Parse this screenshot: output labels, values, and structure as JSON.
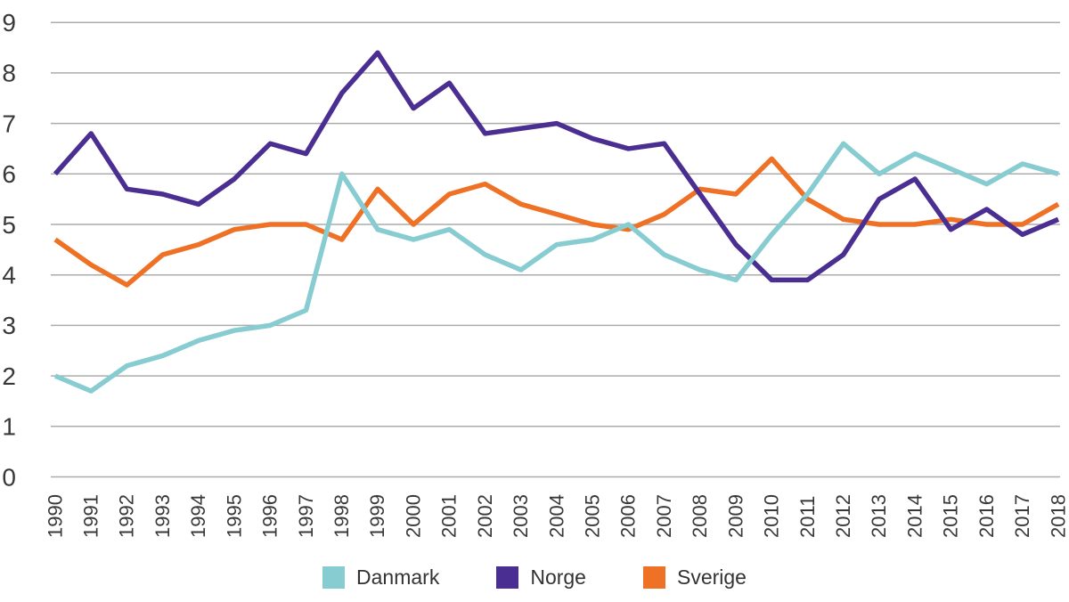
{
  "chart_data": {
    "type": "line",
    "title": "",
    "xlabel": "",
    "ylabel": "",
    "categories": [
      "1990",
      "1991",
      "1992",
      "1993",
      "1994",
      "1995",
      "1996",
      "1997",
      "1998",
      "1999",
      "2000",
      "2001",
      "2002",
      "2003",
      "2004",
      "2005",
      "2006",
      "2007",
      "2008",
      "2009",
      "2010",
      "2011",
      "2012",
      "2013",
      "2014",
      "2015",
      "2016",
      "2017",
      "2018"
    ],
    "series": [
      {
        "name": "Danmark",
        "color": "#87CCD1",
        "values": [
          2.0,
          1.7,
          2.2,
          2.4,
          2.7,
          2.9,
          3.0,
          3.3,
          6.0,
          4.9,
          4.7,
          4.9,
          4.4,
          4.1,
          4.6,
          4.7,
          5.0,
          4.4,
          4.1,
          3.9,
          4.8,
          5.6,
          6.6,
          6.0,
          6.4,
          6.1,
          5.8,
          6.2,
          6.0
        ]
      },
      {
        "name": "Norge",
        "color": "#4B2E91",
        "values": [
          6.0,
          6.8,
          5.7,
          5.6,
          5.4,
          5.9,
          6.6,
          6.4,
          7.6,
          8.4,
          7.3,
          7.8,
          6.8,
          6.9,
          7.0,
          6.7,
          6.5,
          6.6,
          5.6,
          4.6,
          3.9,
          3.9,
          4.4,
          5.5,
          5.9,
          4.9,
          5.3,
          4.8,
          5.1
        ]
      },
      {
        "name": "Sverige",
        "color": "#EE7125",
        "values": [
          4.7,
          4.2,
          3.8,
          4.4,
          4.6,
          4.9,
          5.0,
          5.0,
          4.7,
          5.7,
          5.0,
          5.6,
          5.8,
          5.4,
          5.2,
          5.0,
          4.9,
          5.2,
          5.7,
          5.6,
          6.3,
          5.5,
          5.1,
          5.0,
          5.0,
          5.1,
          5.0,
          5.0,
          5.4
        ]
      }
    ],
    "ylim": [
      0,
      9
    ],
    "y_ticks": [
      0,
      1,
      2,
      3,
      4,
      5,
      6,
      7,
      8,
      9
    ],
    "grid": "horizontal",
    "gridline_color": "#ACACAC",
    "label_color": "#383838",
    "legend_position": "bottom"
  }
}
